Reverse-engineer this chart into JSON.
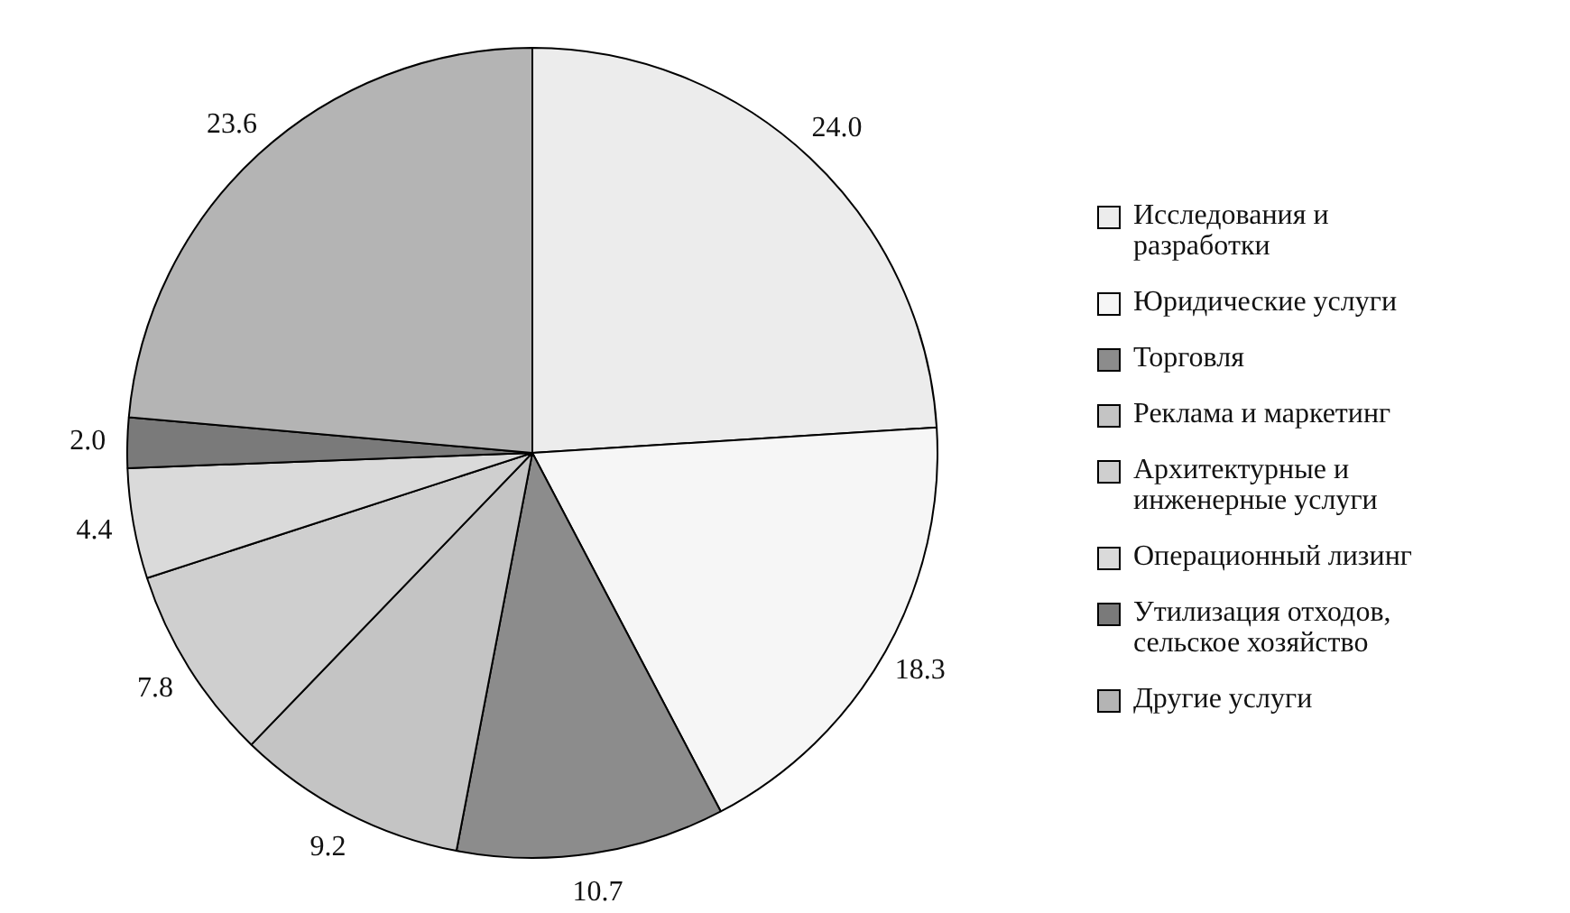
{
  "chart_data": {
    "type": "pie",
    "categories": [
      "Исследования и разработки",
      "Юридические услуги",
      "Торговля",
      "Реклама и маркетинг",
      "Архитектурные и инженерные услуги",
      "Операционный лизинг",
      "Утилизация отходов, сельское хозяйство",
      "Другие услуги"
    ],
    "values": [
      24.0,
      18.3,
      10.7,
      9.2,
      7.8,
      4.4,
      2.0,
      23.6
    ],
    "colors": [
      "#ececec",
      "#f6f6f6",
      "#8c8c8c",
      "#c4c4c4",
      "#cfcfcf",
      "#dadada",
      "#7a7a7a",
      "#b4b4b4"
    ],
    "value_labels": [
      "24.0",
      "18.3",
      "10.7",
      "9.2",
      "7.8",
      "4.4",
      "2.0",
      "23.6"
    ],
    "legend": "right"
  }
}
